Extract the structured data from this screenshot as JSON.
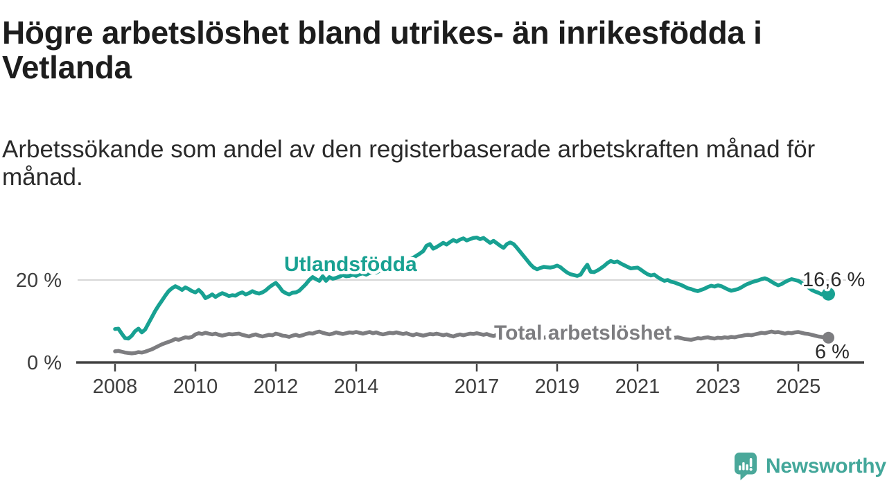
{
  "title": "Högre arbetslöshet bland utrikes- än inrikesfödda i Vetlanda",
  "subtitle": "Arbetssökande som andel av den registerbaserade arbetskraften månad för månad.",
  "branding": {
    "logo_text": "Newsworthy",
    "logo_icon": "speech-bubble-bar-chart-exclamation"
  },
  "colors": {
    "accent_teal": "#18a192",
    "line_gray": "#7d7d80",
    "logo_teal": "#4aa89a",
    "grid": "#d8d8d8",
    "axis": "#424242",
    "text_dark": "#1d1d1d",
    "value_label": "#2b2b2b"
  },
  "chart_data": {
    "type": "line",
    "unit": "%",
    "x_start": "2008-01",
    "x_end": "2025-10",
    "x_interval": "monthly",
    "grid": "horizontal line at 20 % only",
    "legend_position": "inline labels on lines",
    "ylim": [
      0,
      32
    ],
    "y_ticks": [
      {
        "value": 0,
        "label": "0 %"
      },
      {
        "value": 20,
        "label": "20 %"
      }
    ],
    "x_tick_years": [
      2008,
      2010,
      2012,
      2014,
      2017,
      2019,
      2021,
      2023,
      2025
    ],
    "x_tick_labels": [
      "2008",
      "2010",
      "2012",
      "2014",
      "2017",
      "2019",
      "2021",
      "2023",
      "2025"
    ],
    "series": [
      {
        "name": "Utlandsfödda",
        "color": "#18a192",
        "end_label": "16,6 %",
        "end_value": 16.6,
        "values": [
          8.1,
          8.2,
          7.0,
          5.9,
          5.8,
          6.5,
          7.6,
          8.2,
          7.3,
          8.0,
          9.5,
          11.0,
          12.5,
          13.8,
          15.0,
          16.2,
          17.3,
          18.0,
          18.5,
          18.1,
          17.6,
          18.2,
          17.8,
          17.3,
          17.0,
          17.6,
          16.8,
          15.6,
          16.0,
          16.5,
          15.9,
          16.4,
          16.8,
          16.5,
          16.1,
          16.3,
          16.2,
          16.7,
          17.0,
          16.5,
          16.8,
          17.3,
          16.9,
          16.7,
          17.0,
          17.5,
          18.2,
          18.8,
          19.3,
          18.4,
          17.3,
          16.8,
          16.5,
          16.9,
          17.0,
          17.4,
          18.2,
          19.0,
          20.0,
          20.7,
          20.2,
          19.8,
          20.9,
          19.8,
          20.7,
          20.3,
          20.5,
          20.8,
          21.2,
          20.9,
          21.0,
          21.3,
          21.0,
          21.4,
          21.6,
          21.3,
          21.7,
          22.0,
          21.8,
          22.2,
          22.5,
          22.3,
          22.7,
          23.0,
          23.3,
          23.7,
          24.1,
          24.5,
          25.0,
          25.4,
          25.9,
          26.4,
          27.0,
          28.3,
          28.7,
          27.6,
          28.0,
          28.5,
          29.0,
          28.6,
          29.2,
          29.7,
          29.3,
          29.8,
          30.1,
          29.6,
          29.9,
          30.2,
          30.3,
          29.9,
          30.2,
          29.6,
          29.0,
          29.5,
          28.9,
          28.3,
          27.8,
          28.7,
          29.1,
          28.7,
          27.8,
          26.8,
          25.8,
          24.8,
          23.8,
          23.0,
          22.6,
          22.9,
          23.2,
          23.1,
          23.0,
          23.2,
          23.5,
          23.1,
          22.4,
          21.8,
          21.4,
          21.2,
          21.0,
          21.3,
          22.6,
          23.7,
          22.0,
          21.9,
          22.3,
          22.8,
          23.4,
          24.1,
          24.6,
          24.3,
          24.5,
          24.0,
          23.6,
          23.2,
          22.8,
          22.9,
          23.0,
          22.5,
          21.9,
          21.4,
          21.1,
          21.3,
          20.7,
          20.2,
          19.8,
          20.0,
          19.6,
          19.4,
          19.1,
          18.8,
          18.4,
          18.0,
          17.8,
          17.5,
          17.3,
          17.6,
          17.9,
          18.3,
          18.6,
          18.4,
          18.7,
          18.5,
          18.1,
          17.7,
          17.4,
          17.6,
          17.8,
          18.2,
          18.7,
          19.1,
          19.4,
          19.7,
          19.9,
          20.2,
          20.4,
          20.1,
          19.6,
          19.1,
          18.7,
          19.0,
          19.5,
          19.9,
          20.2,
          20.0,
          19.8,
          19.3,
          18.7,
          18.2,
          17.6,
          17.2,
          16.9,
          16.5,
          17.1,
          16.6
        ]
      },
      {
        "name": "Total arbetslöshet",
        "color": "#7d7d80",
        "end_label": "6 %",
        "end_value": 6.0,
        "values": [
          2.7,
          2.8,
          2.6,
          2.4,
          2.3,
          2.2,
          2.3,
          2.5,
          2.4,
          2.6,
          2.9,
          3.2,
          3.6,
          4.0,
          4.4,
          4.7,
          5.0,
          5.3,
          5.7,
          5.5,
          5.8,
          6.1,
          6.0,
          6.2,
          6.8,
          7.1,
          6.9,
          7.2,
          7.0,
          6.8,
          7.0,
          6.7,
          6.5,
          6.7,
          6.9,
          6.8,
          6.9,
          7.0,
          6.7,
          6.5,
          6.3,
          6.6,
          6.8,
          6.5,
          6.3,
          6.5,
          6.7,
          6.6,
          7.0,
          6.8,
          6.5,
          6.4,
          6.2,
          6.5,
          6.7,
          6.4,
          6.6,
          6.9,
          7.1,
          7.0,
          7.3,
          7.5,
          7.2,
          7.0,
          6.8,
          7.0,
          7.3,
          7.1,
          6.9,
          7.1,
          7.3,
          7.2,
          7.4,
          7.2,
          7.0,
          7.2,
          7.4,
          7.1,
          7.3,
          7.0,
          6.8,
          7.0,
          7.2,
          7.1,
          7.3,
          7.1,
          6.9,
          7.1,
          6.8,
          6.6,
          6.9,
          6.7,
          6.5,
          6.7,
          6.9,
          6.8,
          7.0,
          6.8,
          6.6,
          6.8,
          6.5,
          6.3,
          6.6,
          6.8,
          6.6,
          6.8,
          7.0,
          6.9,
          7.1,
          6.9,
          6.7,
          6.9,
          6.6,
          6.4,
          6.7,
          6.5,
          6.3,
          6.5,
          6.7,
          6.6,
          6.8,
          6.6,
          6.4,
          6.6,
          6.3,
          6.1,
          6.4,
          6.2,
          6.0,
          6.2,
          6.4,
          6.3,
          6.5,
          6.3,
          6.1,
          6.3,
          6.0,
          5.9,
          6.2,
          6.0,
          6.3,
          6.5,
          6.4,
          6.6,
          6.8,
          7.0,
          7.3,
          7.5,
          7.4,
          7.2,
          7.4,
          7.1,
          6.9,
          6.7,
          6.5,
          6.6,
          6.8,
          6.6,
          6.4,
          6.2,
          6.0,
          6.2,
          6.0,
          5.8,
          5.7,
          5.9,
          5.8,
          6.0,
          6.1,
          5.9,
          5.7,
          5.6,
          5.5,
          5.7,
          5.9,
          5.8,
          6.0,
          6.1,
          5.9,
          5.8,
          6.0,
          5.9,
          6.1,
          6.0,
          6.2,
          6.1,
          6.3,
          6.4,
          6.6,
          6.7,
          6.6,
          6.8,
          7.0,
          7.2,
          7.1,
          7.3,
          7.5,
          7.3,
          7.4,
          7.2,
          7.0,
          7.2,
          7.1,
          7.3,
          7.4,
          7.2,
          7.0,
          6.9,
          6.7,
          6.5,
          6.3,
          6.2,
          6.1,
          6.0
        ]
      }
    ]
  }
}
